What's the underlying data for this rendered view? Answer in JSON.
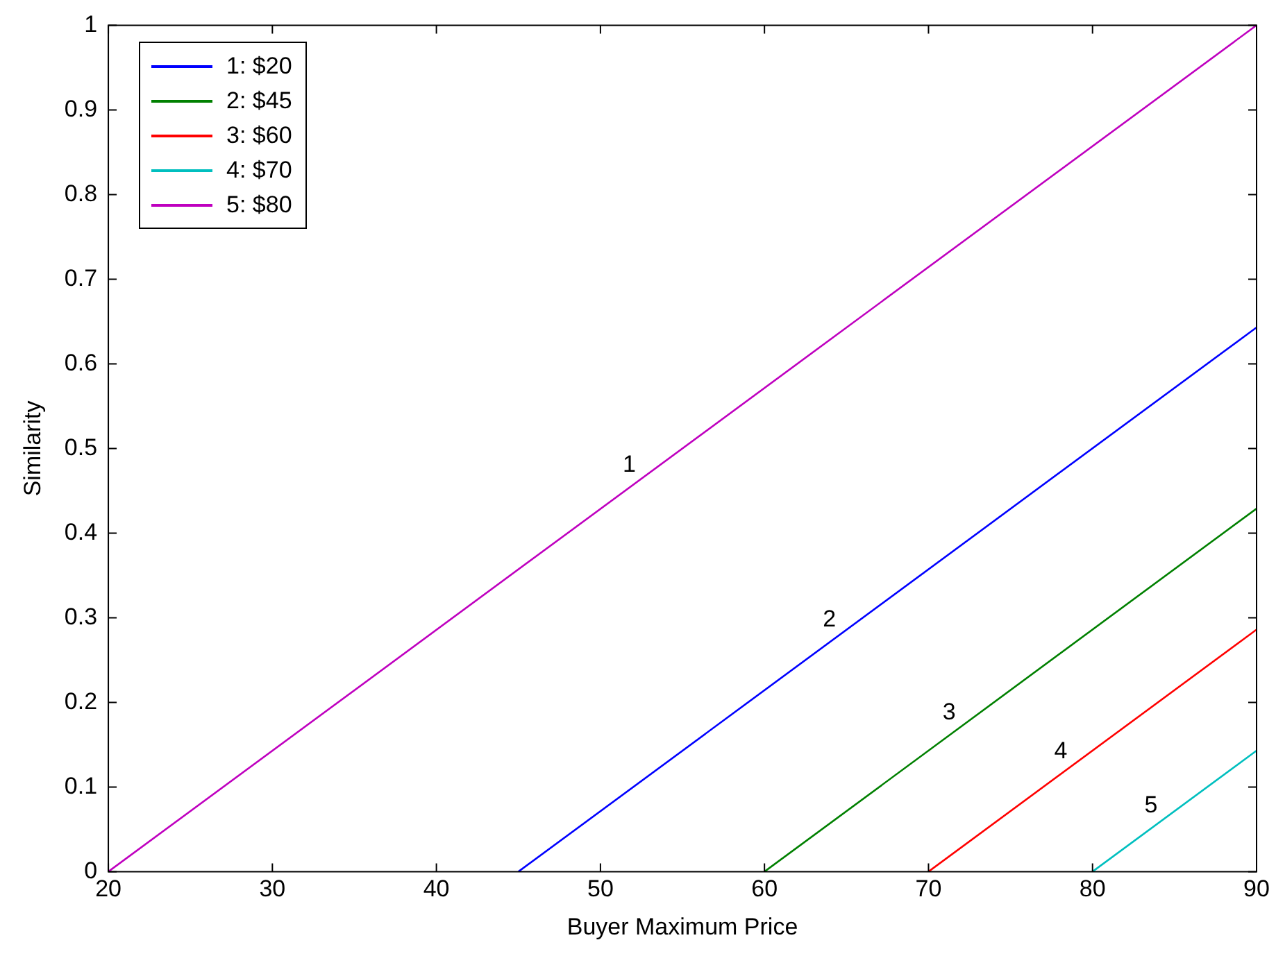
{
  "chart_data": {
    "type": "line",
    "xlabel": "Buyer Maximum Price",
    "ylabel": "Similarity",
    "xlim": [
      20,
      90
    ],
    "xticks": [
      20,
      30,
      40,
      50,
      60,
      70,
      80,
      90
    ],
    "ylim": [
      0,
      1
    ],
    "yticks": [
      0,
      0.1,
      0.2,
      0.3,
      0.4,
      0.5,
      0.6,
      0.7,
      0.8,
      0.9,
      1
    ],
    "grid": false,
    "legend": "top left",
    "marker": "none",
    "line_style": "solid",
    "series": [
      {
        "name": "1: $20",
        "color": "#0000ff",
        "x": [
          45,
          90
        ],
        "values": [
          0,
          0.643
        ]
      },
      {
        "name": "2: $45",
        "color": "#008000",
        "x": [
          60,
          90
        ],
        "values": [
          0,
          0.429
        ]
      },
      {
        "name": "3: $60",
        "color": "#ff0000",
        "x": [
          70,
          90
        ],
        "values": [
          0,
          0.286
        ]
      },
      {
        "name": "4: $70",
        "color": "#00bfbf",
        "x": [
          80,
          90
        ],
        "values": [
          0,
          0.143
        ]
      },
      {
        "name": "5: $80",
        "color": "#bf00bf",
        "x": [
          20,
          90
        ],
        "values": [
          0,
          1
        ]
      }
    ],
    "annotations": [
      {
        "text": "1",
        "x": 52.1,
        "y": 0.459
      },
      {
        "text": "2",
        "x": 64.3,
        "y": 0.276
      },
      {
        "text": "3",
        "x": 71.6,
        "y": 0.166
      },
      {
        "text": "4",
        "x": 78.4,
        "y": 0.12
      },
      {
        "text": "5",
        "x": 83.9,
        "y": 0.056
      }
    ]
  }
}
